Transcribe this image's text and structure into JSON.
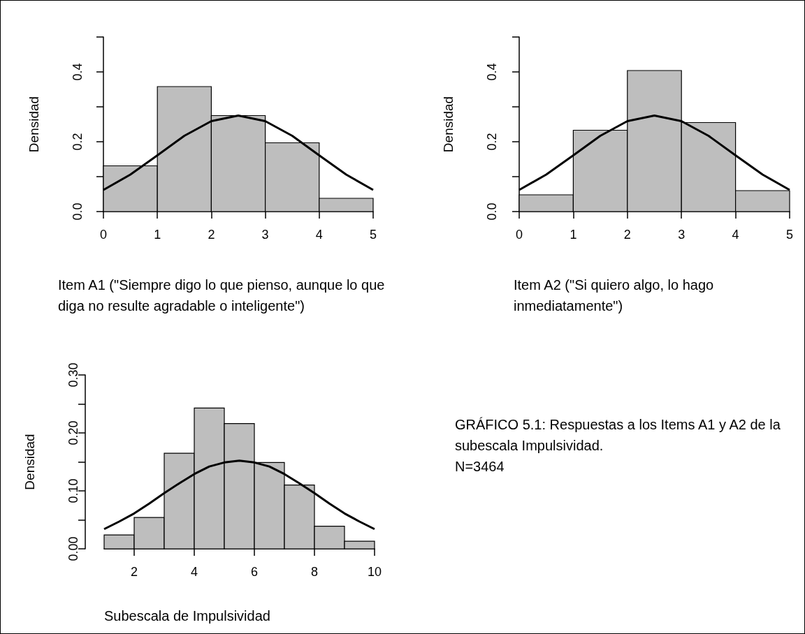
{
  "chart_data": [
    {
      "type": "histogram",
      "xlabel": "Item A1 (\"Siempre digo lo que pienso, aunque lo que diga no resulte agradable o inteligente\")",
      "ylabel": "Densidad",
      "xlim": [
        0,
        5
      ],
      "xticks": [
        0,
        1,
        2,
        3,
        4,
        5
      ],
      "ylim": [
        0,
        0.5
      ],
      "yticks": [
        {
          "value": 0,
          "label": "0.0"
        },
        {
          "value": 0.1,
          "label": null
        },
        {
          "value": 0.2,
          "label": "0.2"
        },
        {
          "value": 0.3,
          "label": null
        },
        {
          "value": 0.4,
          "label": "0.4"
        },
        {
          "value": 0.5,
          "label": null
        }
      ],
      "series": [
        {
          "type": "histogram",
          "color": "#bebebe",
          "bins": [
            0,
            1,
            2,
            3,
            4,
            5
          ],
          "values": [
            0.131,
            0.358,
            0.275,
            0.197,
            0.038
          ]
        },
        {
          "type": "line",
          "color": "#000000",
          "x": [
            0,
            0.5,
            1,
            1.5,
            2,
            2.5,
            3,
            3.5,
            4,
            4.5,
            5
          ],
          "values": [
            0.062,
            0.106,
            0.161,
            0.217,
            0.259,
            0.275,
            0.259,
            0.217,
            0.161,
            0.106,
            0.062
          ]
        }
      ]
    },
    {
      "type": "histogram",
      "xlabel": "Item A2 (\"Si quiero algo, lo hago inmediatamente\")",
      "ylabel": "Densidad",
      "xlim": [
        0,
        5
      ],
      "xticks": [
        0,
        1,
        2,
        3,
        4,
        5
      ],
      "ylim": [
        0,
        0.5
      ],
      "yticks": [
        {
          "value": 0,
          "label": "0.0"
        },
        {
          "value": 0.1,
          "label": null
        },
        {
          "value": 0.2,
          "label": "0.2"
        },
        {
          "value": 0.3,
          "label": null
        },
        {
          "value": 0.4,
          "label": "0.4"
        },
        {
          "value": 0.5,
          "label": null
        }
      ],
      "series": [
        {
          "type": "histogram",
          "color": "#bebebe",
          "bins": [
            0,
            1,
            2,
            3,
            4,
            5
          ],
          "values": [
            0.048,
            0.233,
            0.404,
            0.255,
            0.06
          ]
        },
        {
          "type": "line",
          "color": "#000000",
          "x": [
            0,
            0.5,
            1,
            1.5,
            2,
            2.5,
            3,
            3.5,
            4,
            4.5,
            5
          ],
          "values": [
            0.062,
            0.106,
            0.161,
            0.217,
            0.259,
            0.275,
            0.259,
            0.217,
            0.161,
            0.106,
            0.062
          ]
        }
      ]
    },
    {
      "type": "histogram",
      "xlabel": "Subescala de Impulsividad",
      "ylabel": "Densidad",
      "xlim": [
        1,
        10
      ],
      "xticks": [
        2,
        4,
        6,
        8,
        10
      ],
      "ylim": [
        0,
        0.3
      ],
      "yticks": [
        {
          "value": 0,
          "label": "0.00"
        },
        {
          "value": 0.05,
          "label": null
        },
        {
          "value": 0.1,
          "label": "0.10"
        },
        {
          "value": 0.15,
          "label": null
        },
        {
          "value": 0.2,
          "label": "0.20"
        },
        {
          "value": 0.25,
          "label": null
        },
        {
          "value": 0.3,
          "label": "0.30"
        }
      ],
      "series": [
        {
          "type": "histogram",
          "color": "#bebebe",
          "bins": [
            1,
            2,
            3,
            4,
            5,
            6,
            7,
            8,
            9,
            10
          ],
          "values": [
            0.024,
            0.054,
            0.165,
            0.243,
            0.216,
            0.149,
            0.11,
            0.039,
            0.013
          ]
        },
        {
          "type": "line",
          "color": "#000000",
          "x": [
            1,
            1.5,
            2,
            2.5,
            3,
            3.5,
            4,
            4.5,
            5,
            5.5,
            6,
            6.5,
            7,
            7.5,
            8,
            8.5,
            9,
            9.5,
            10
          ],
          "values": [
            0.034,
            0.047,
            0.061,
            0.078,
            0.096,
            0.113,
            0.129,
            0.142,
            0.149,
            0.152,
            0.149,
            0.142,
            0.129,
            0.113,
            0.096,
            0.078,
            0.061,
            0.047,
            0.034
          ]
        }
      ]
    },
    {
      "type": "other",
      "title": "GRÁFICO 5.1: Respuestas a los Items A1 y A2 de la subescala Impulsividad.",
      "annotations": [
        "N=3464"
      ]
    }
  ]
}
